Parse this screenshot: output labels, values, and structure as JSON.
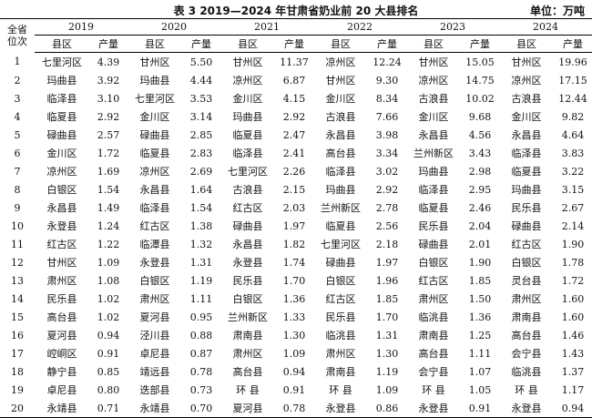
{
  "header": {
    "title": "表 3 2019—2024 年甘肃省奶业前 20 大县排名",
    "unit": "单位：万吨"
  },
  "table": {
    "corner": [
      "全省",
      "位次"
    ],
    "years": [
      "2019",
      "2020",
      "2021",
      "2022",
      "2023",
      "2024"
    ],
    "subheaders": [
      "县区",
      "产量"
    ],
    "rows": [
      [
        "1",
        "七里河区",
        "4.39",
        "甘州区",
        "5.50",
        "甘州区",
        "11.37",
        "凉州区",
        "12.24",
        "甘州区",
        "15.05",
        "甘州区",
        "19.96"
      ],
      [
        "2",
        "玛曲县",
        "3.92",
        "玛曲县",
        "4.44",
        "凉州区",
        "6.87",
        "甘州区",
        "9.30",
        "凉州区",
        "14.75",
        "凉州区",
        "17.15"
      ],
      [
        "3",
        "临泽县",
        "3.10",
        "七里河区",
        "3.53",
        "金川区",
        "4.15",
        "金川区",
        "8.34",
        "古浪县",
        "10.02",
        "古浪县",
        "12.44"
      ],
      [
        "4",
        "临夏县",
        "2.92",
        "金川区",
        "3.14",
        "玛曲县",
        "2.92",
        "古浪县",
        "7.66",
        "金川区",
        "9.68",
        "金川区",
        "9.82"
      ],
      [
        "5",
        "碌曲县",
        "2.57",
        "碌曲县",
        "2.85",
        "临夏县",
        "2.47",
        "永昌县",
        "3.98",
        "永昌县",
        "4.56",
        "永昌县",
        "4.64"
      ],
      [
        "6",
        "金川区",
        "1.72",
        "临夏县",
        "2.83",
        "临泽县",
        "2.41",
        "高台县",
        "3.34",
        "兰州新区",
        "3.43",
        "临泽县",
        "3.83"
      ],
      [
        "7",
        "凉州区",
        "1.69",
        "凉州区",
        "2.69",
        "七里河区",
        "2.26",
        "临泽县",
        "3.02",
        "玛曲县",
        "2.98",
        "临夏县",
        "3.22"
      ],
      [
        "8",
        "白银区",
        "1.54",
        "永昌县",
        "1.64",
        "古浪县",
        "2.15",
        "玛曲县",
        "2.92",
        "临泽县",
        "2.95",
        "玛曲县",
        "3.15"
      ],
      [
        "9",
        "永昌县",
        "1.49",
        "临泽县",
        "1.54",
        "红古区",
        "2.03",
        "兰州新区",
        "2.78",
        "临夏县",
        "2.46",
        "民乐县",
        "2.67"
      ],
      [
        "10",
        "永登县",
        "1.24",
        "红古区",
        "1.38",
        "碌曲县",
        "1.97",
        "临夏县",
        "2.56",
        "民乐县",
        "2.04",
        "碌曲县",
        "2.14"
      ],
      [
        "11",
        "红古区",
        "1.22",
        "临潭县",
        "1.32",
        "永昌县",
        "1.82",
        "七里河区",
        "2.18",
        "碌曲县",
        "2.01",
        "红古区",
        "1.90"
      ],
      [
        "12",
        "甘州区",
        "1.09",
        "永登县",
        "1.31",
        "永登县",
        "1.74",
        "碌曲县",
        "1.97",
        "白银区",
        "1.90",
        "白银区",
        "1.78"
      ],
      [
        "13",
        "肃州区",
        "1.08",
        "白银区",
        "1.19",
        "民乐县",
        "1.70",
        "白银区",
        "1.96",
        "红古区",
        "1.85",
        "灵台县",
        "1.72"
      ],
      [
        "14",
        "民乐县",
        "1.02",
        "肃州区",
        "1.11",
        "白银区",
        "1.36",
        "红古区",
        "1.85",
        "肃州区",
        "1.50",
        "肃州区",
        "1.60"
      ],
      [
        "15",
        "高台县",
        "1.02",
        "夏河县",
        "0.95",
        "兰州新区",
        "1.33",
        "民乐县",
        "1.70",
        "临洮县",
        "1.36",
        "肃南县",
        "1.60"
      ],
      [
        "16",
        "夏河县",
        "0.94",
        "泾川县",
        "0.88",
        "肃南县",
        "1.30",
        "临洮县",
        "1.31",
        "肃南县",
        "1.25",
        "高台县",
        "1.46"
      ],
      [
        "17",
        "崆峒区",
        "0.91",
        "卓尼县",
        "0.87",
        "肃州区",
        "1.09",
        "肃州区",
        "1.30",
        "高台县",
        "1.11",
        "会宁县",
        "1.43"
      ],
      [
        "18",
        "静宁县",
        "0.85",
        "靖远县",
        "0.78",
        "高台县",
        "0.94",
        "肃南县",
        "1.19",
        "会宁县",
        "1.07",
        "临洮县",
        "1.37"
      ],
      [
        "19",
        "卓尼县",
        "0.80",
        "迭部县",
        "0.73",
        "环 县",
        "0.91",
        "环 县",
        "1.09",
        "环 县",
        "1.05",
        "环 县",
        "1.17"
      ],
      [
        "20",
        "永靖县",
        "0.71",
        "永靖县",
        "0.70",
        "夏河县",
        "0.78",
        "永登县",
        "0.86",
        "永登县",
        "0.91",
        "永登县",
        "0.94"
      ]
    ]
  }
}
